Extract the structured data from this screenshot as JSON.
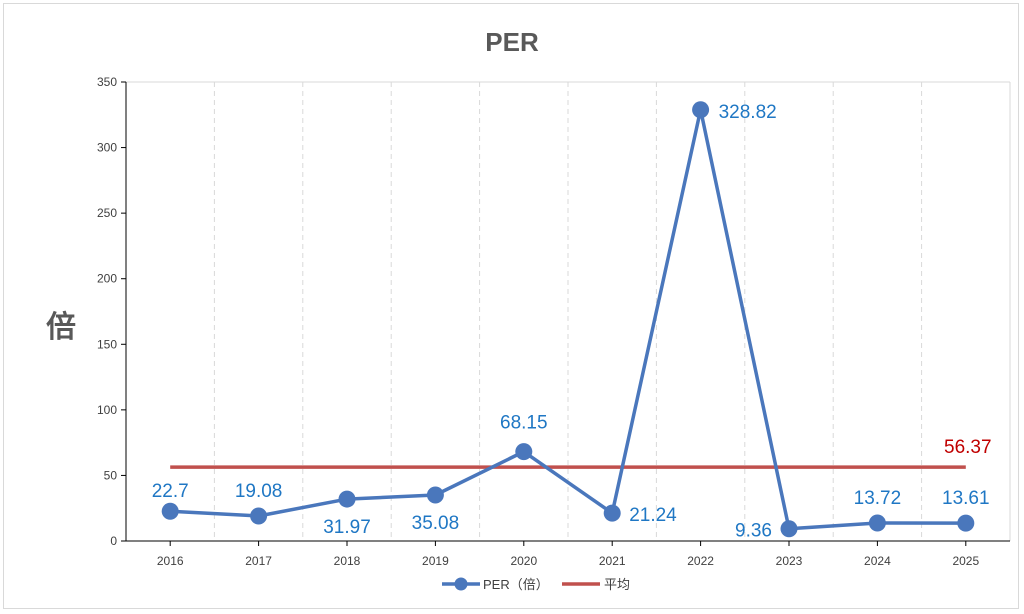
{
  "chart_data": {
    "type": "line",
    "title": "PER",
    "ylabel": "倍",
    "xlabel": "",
    "ylim": [
      0,
      350
    ],
    "yticks": [
      0,
      50,
      100,
      150,
      200,
      250,
      300,
      350
    ],
    "categories": [
      "2016",
      "2017",
      "2018",
      "2019",
      "2020",
      "2021",
      "2022",
      "2023",
      "2024",
      "2025"
    ],
    "series": [
      {
        "name": "PER（倍）",
        "color": "#4a77bc",
        "values": [
          22.7,
          19.08,
          31.97,
          35.08,
          68.15,
          21.24,
          328.82,
          9.36,
          13.72,
          13.61
        ],
        "labels": [
          "22.7",
          "19.08",
          "31.97",
          "35.08",
          "68.15",
          "21.24",
          "328.82",
          "9.36",
          "13.72",
          "13.61"
        ],
        "label_color": "#1f77c4"
      },
      {
        "name": "平均",
        "color": "#c0504d",
        "value": 56.37,
        "label": "56.37",
        "label_color": "#c00000"
      }
    ],
    "grid": {
      "vertical": "dashed",
      "horizontal": false
    },
    "legend_position": "bottom"
  }
}
